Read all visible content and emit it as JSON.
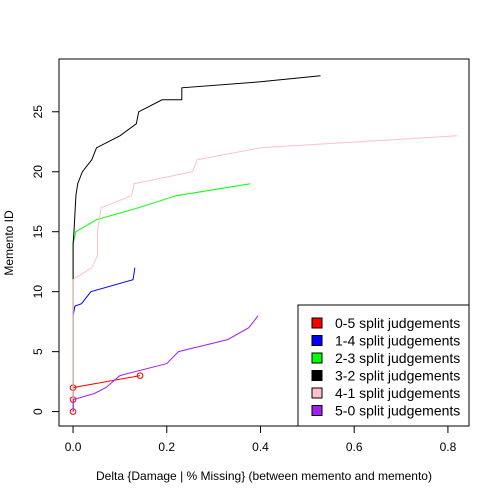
{
  "chart_data": {
    "type": "line",
    "title": "",
    "xlabel": "Delta {Damage | % Missing} (between memento and memento)",
    "ylabel": "Memento ID",
    "xlim": [
      -0.03,
      0.845
    ],
    "ylim": [
      -1.2,
      29.4
    ],
    "x_ticks": [
      0.0,
      0.2,
      0.4,
      0.6,
      0.8
    ],
    "x_tick_labels": [
      "0.0",
      "0.2",
      "0.4",
      "0.6",
      "0.8"
    ],
    "y_ticks": [
      0,
      5,
      10,
      15,
      20,
      25
    ],
    "y_tick_labels": [
      "0",
      "5",
      "10",
      "15",
      "20",
      "25"
    ],
    "grid": false,
    "legend_position": "bottom-right",
    "series": [
      {
        "name": "0-5 split judgements",
        "color": "#ff0000",
        "markers": true,
        "x": [
          0.0,
          0.0,
          0.0,
          0.143
        ],
        "y": [
          0,
          1,
          2,
          3
        ]
      },
      {
        "name": "1-4 split judgements",
        "color": "#0000ff",
        "markers": false,
        "x": [
          0.0,
          0.0,
          0.0,
          0.0,
          0.0,
          0.0,
          0.0,
          0.0,
          0.0,
          0.004,
          0.018,
          0.038,
          0.128,
          0.132
        ],
        "y": [
          0,
          1,
          2,
          3,
          4,
          5,
          6,
          7,
          8,
          8.8,
          9,
          10,
          11,
          12
        ]
      },
      {
        "name": "2-3 split judgements",
        "color": "#00ff00",
        "markers": false,
        "x": [
          0.0,
          0.0,
          0.0,
          0.0,
          0.0,
          0.0,
          0.0,
          0.0,
          0.0,
          0.0,
          0.0,
          0.0,
          0.0,
          0.0,
          0.0,
          0.006,
          0.05,
          0.14,
          0.22,
          0.3,
          0.378
        ],
        "y": [
          0,
          1,
          2,
          3,
          4,
          5,
          6,
          7,
          8,
          9,
          10,
          11,
          12,
          13,
          14,
          15,
          16,
          17,
          18,
          18.5,
          19
        ]
      },
      {
        "name": "3-2 split judgements",
        "color": "#000000",
        "markers": false,
        "x": [
          0.0,
          0.0,
          0.0,
          0.0,
          0.0,
          0.0,
          0.0,
          0.0,
          0.0,
          0.0,
          0.0,
          0.0,
          0.0,
          0.0,
          0.0,
          0.002,
          0.006,
          0.01,
          0.02,
          0.04,
          0.05,
          0.1,
          0.135,
          0.14,
          0.19,
          0.232,
          0.232,
          0.4,
          0.528
        ],
        "y": [
          0,
          1,
          2,
          3,
          4,
          5,
          6,
          7,
          8,
          9,
          10,
          11,
          12,
          13,
          14,
          15,
          18,
          19,
          20,
          21,
          22,
          23,
          24,
          25,
          26,
          26,
          27,
          27.5,
          28
        ]
      },
      {
        "name": "4-1 split judgements",
        "color": "#ffc0cb",
        "markers": false,
        "x": [
          0.0,
          0.0,
          0.0,
          0.0,
          0.0,
          0.0,
          0.0,
          0.0,
          0.0,
          0.0,
          0.0,
          0.0,
          0.04,
          0.052,
          0.052,
          0.06,
          0.125,
          0.128,
          0.13,
          0.255,
          0.265,
          0.4,
          0.82
        ],
        "y": [
          0,
          1,
          2,
          3,
          4,
          5,
          6,
          7,
          8,
          9,
          10,
          11,
          12,
          13,
          15,
          17,
          18,
          18.5,
          19,
          20,
          21,
          22,
          23
        ]
      },
      {
        "name": "5-0 split judgements",
        "color": "#a020f0",
        "markers": false,
        "x": [
          0.0,
          0.0,
          0.045,
          0.07,
          0.1,
          0.2,
          0.225,
          0.33,
          0.375,
          0.395
        ],
        "y": [
          0,
          1,
          1.5,
          2,
          3,
          4,
          5,
          6,
          7,
          8
        ]
      }
    ]
  }
}
